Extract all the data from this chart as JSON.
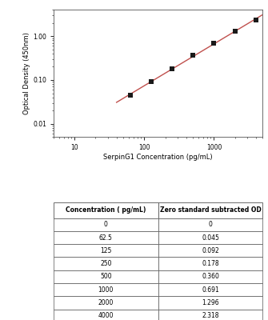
{
  "concentrations": [
    62.5,
    125,
    250,
    500,
    1000,
    2000,
    4000
  ],
  "od_values": [
    0.045,
    0.092,
    0.178,
    0.36,
    0.691,
    1.296,
    2.318
  ],
  "table_concentrations": [
    "0",
    "62.5",
    "125",
    "250",
    "500",
    "1000",
    "2000",
    "4000"
  ],
  "table_od": [
    "0",
    "0.045",
    "0.092",
    "0.178",
    "0.360",
    "0.691",
    "1.296",
    "2.318"
  ],
  "xlabel": "SerpinG1 Concentration (pg/mL)",
  "ylabel": "Optical Density (450nm)",
  "col1_header": "Concentration ( pg/mL)",
  "col2_header": "Zero standard subtracted OD",
  "line_color": "#c0504d",
  "marker_color": "#1a1a1a",
  "xlim_log": [
    5,
    5000
  ],
  "ylim_log": [
    0.005,
    4.0
  ],
  "background_color": "#ffffff",
  "plot_bg_color": "#ffffff",
  "table_header_color": "#ffffff",
  "table_cell_color": "#ffffff",
  "table_edge_color": "#555555"
}
